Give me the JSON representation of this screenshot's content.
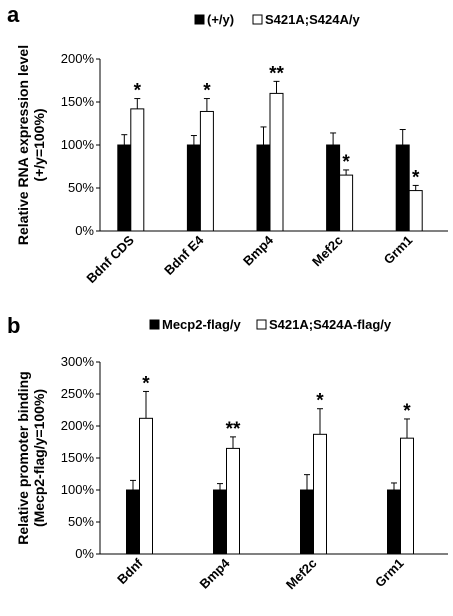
{
  "chart_data": [
    {
      "panel": "a",
      "type": "bar",
      "categories": [
        "Bdnf CDS",
        "Bdnf E4",
        "Bmp4",
        "Mef2c",
        "Grm1"
      ],
      "series": [
        {
          "name": "(+/y)",
          "color": "#000000",
          "values": [
            100,
            100,
            100,
            100,
            100
          ],
          "errors": [
            12,
            11,
            21,
            14,
            18
          ]
        },
        {
          "name": "S421A;S424A/y",
          "color": "#ffffff",
          "values": [
            142,
            139,
            160,
            65,
            47
          ],
          "errors": [
            12,
            15,
            14,
            6,
            6
          ]
        }
      ],
      "significance": [
        "*",
        "*",
        "**",
        "*",
        "*"
      ],
      "ylabel": "Relative RNA expression level\n(+/y=100%)",
      "ylim": [
        0,
        200
      ],
      "yticks": [
        "0%",
        "50%",
        "100%",
        "150%",
        "200%"
      ],
      "legend_position": "top",
      "grid": false
    },
    {
      "panel": "b",
      "type": "bar",
      "categories": [
        "Bdnf",
        "Bmp4",
        "Mef2c",
        "Grm1"
      ],
      "series": [
        {
          "name": "Mecp2-flag/y",
          "color": "#000000",
          "values": [
            100,
            100,
            100,
            100
          ],
          "errors": [
            15,
            10,
            24,
            11
          ]
        },
        {
          "name": "S421A;S424A-flag/y",
          "color": "#ffffff",
          "values": [
            212,
            165,
            187,
            181
          ],
          "errors": [
            42,
            18,
            40,
            30
          ]
        }
      ],
      "significance": [
        "*",
        "**",
        "*",
        "*"
      ],
      "ylabel": "Relative promoter binding\n(Mecp2-flag/y=100%)",
      "ylim": [
        0,
        300
      ],
      "yticks": [
        "0%",
        "50%",
        "100%",
        "150%",
        "200%",
        "250%",
        "300%"
      ],
      "legend_position": "top",
      "grid": false
    }
  ]
}
